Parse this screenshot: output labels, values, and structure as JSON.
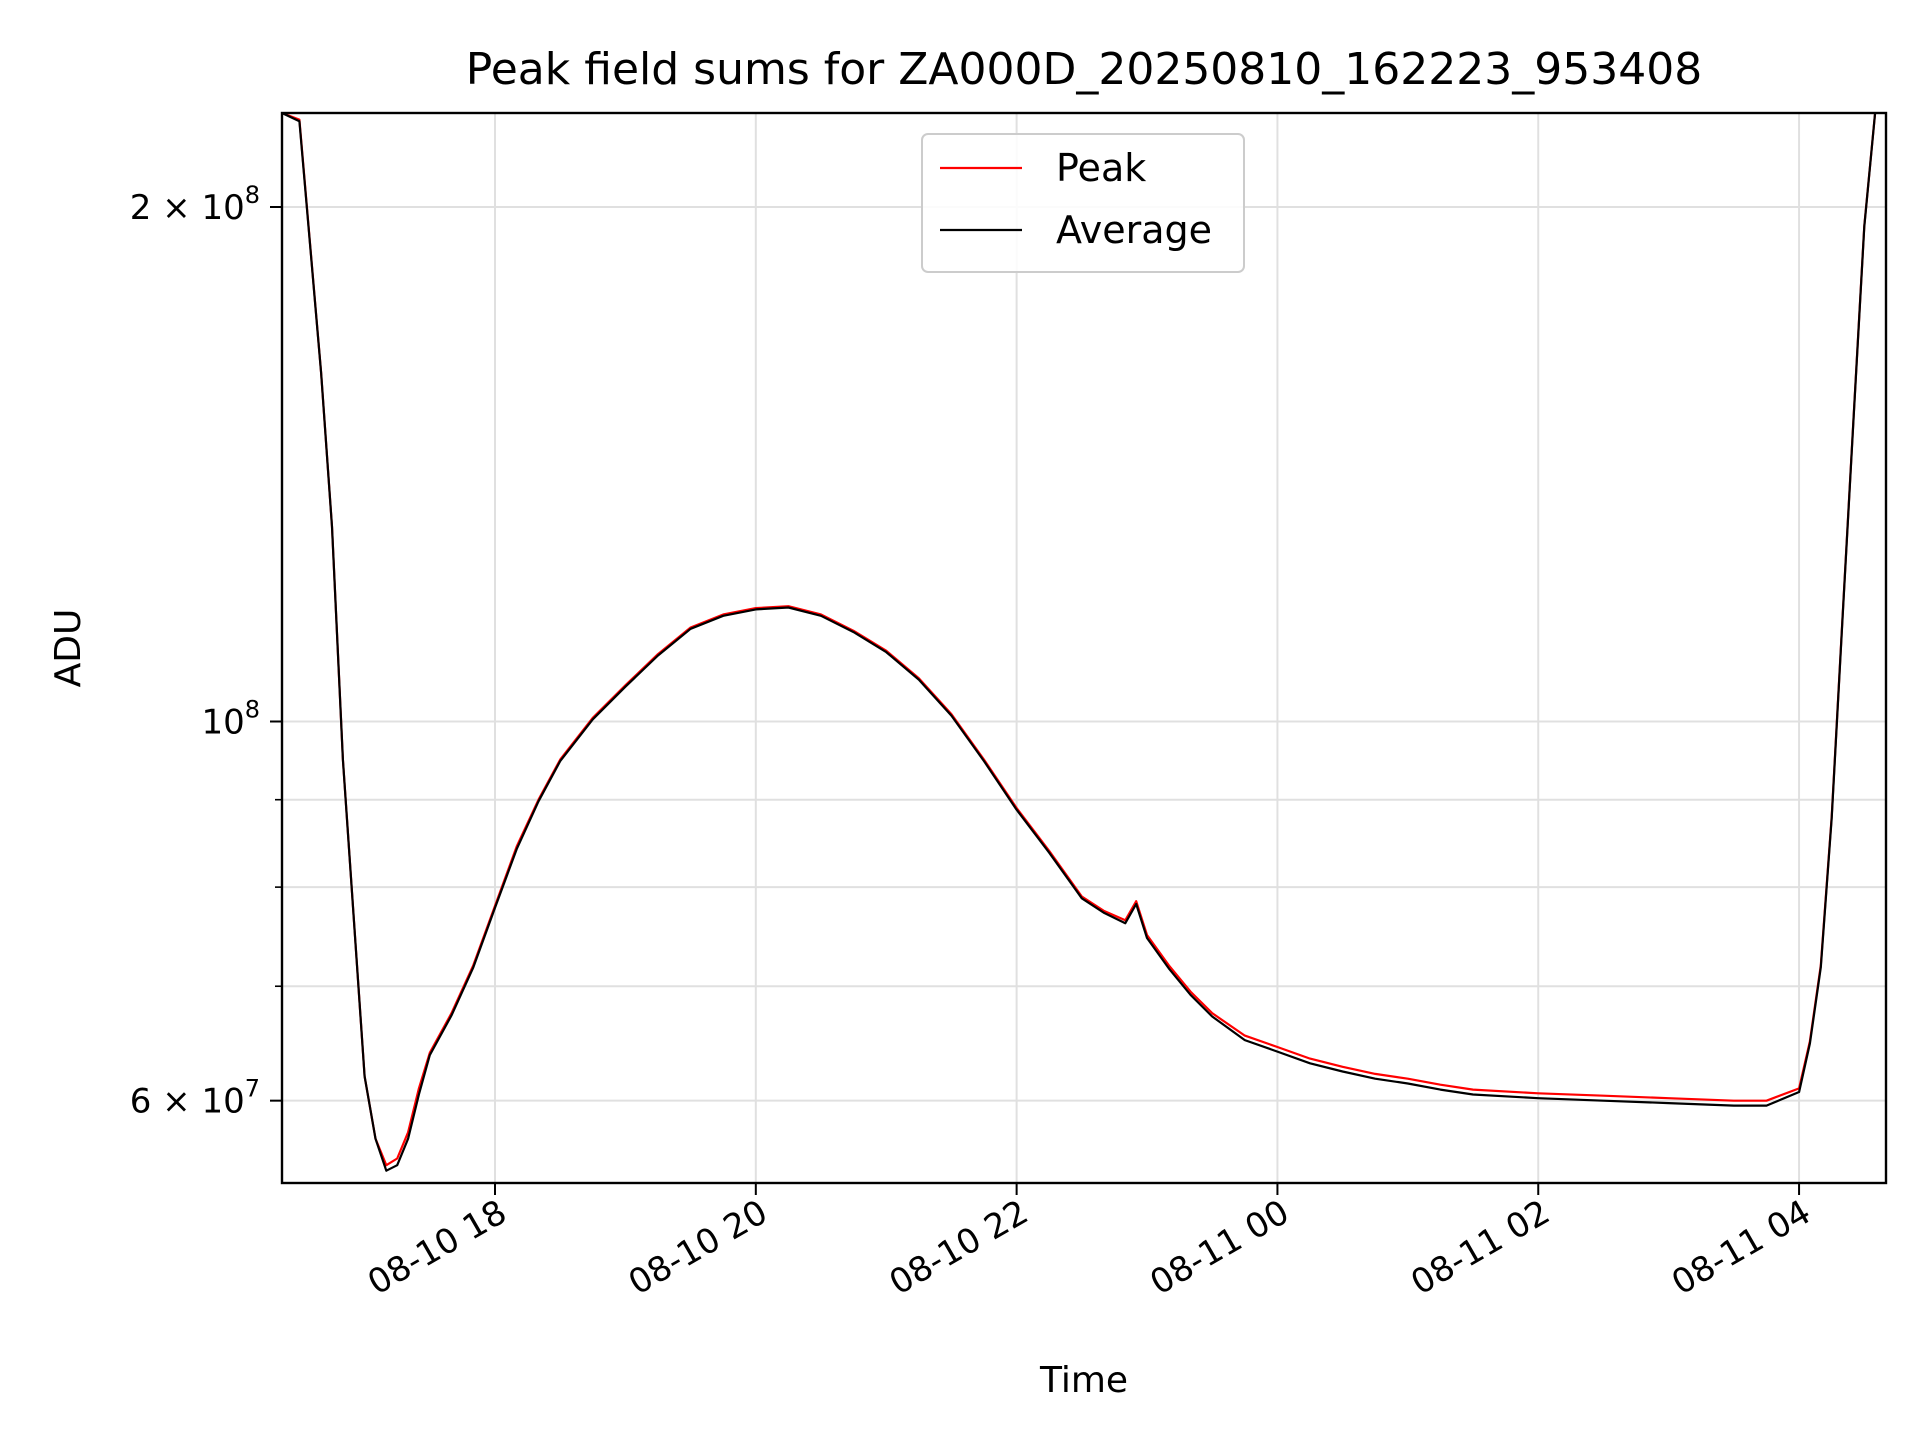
{
  "chart_data": {
    "type": "line",
    "title": "Peak field sums for ZA000D_20250810_162223_953408",
    "xlabel": "Time",
    "ylabel": "ADU",
    "yscale": "log",
    "grid": true,
    "legend_position": "upper center",
    "xlim": [
      "2025-08-10 16:22",
      "2025-08-11 04:40"
    ],
    "ylim": [
      53700000,
      227000000
    ],
    "x_ticks": [
      {
        "value": "2025-08-10 18:00",
        "label": "08-10 18"
      },
      {
        "value": "2025-08-10 20:00",
        "label": "08-10 20"
      },
      {
        "value": "2025-08-10 22:00",
        "label": "08-10 22"
      },
      {
        "value": "2025-08-11 00:00",
        "label": "08-11 00"
      },
      {
        "value": "2025-08-11 02:00",
        "label": "08-11 02"
      },
      {
        "value": "2025-08-11 04:00",
        "label": "08-11 04"
      }
    ],
    "y_major_ticks": [
      {
        "value": 60000000,
        "mantissa": "6",
        "exp": "7"
      },
      {
        "value": 100000000,
        "mantissa": "",
        "exp": "8"
      },
      {
        "value": 200000000,
        "mantissa": "2",
        "exp": "8"
      }
    ],
    "y_minor_ticks": [
      70000000,
      80000000,
      90000000
    ],
    "x": [
      "2025-08-10 16:22",
      "2025-08-10 16:30",
      "2025-08-10 16:40",
      "2025-08-10 16:45",
      "2025-08-10 16:50",
      "2025-08-10 17:00",
      "2025-08-10 17:05",
      "2025-08-10 17:10",
      "2025-08-10 17:15",
      "2025-08-10 17:20",
      "2025-08-10 17:25",
      "2025-08-10 17:30",
      "2025-08-10 17:40",
      "2025-08-10 17:50",
      "2025-08-10 18:00",
      "2025-08-10 18:10",
      "2025-08-10 18:20",
      "2025-08-10 18:30",
      "2025-08-10 18:45",
      "2025-08-10 19:00",
      "2025-08-10 19:15",
      "2025-08-10 19:30",
      "2025-08-10 19:45",
      "2025-08-10 20:00",
      "2025-08-10 20:15",
      "2025-08-10 20:30",
      "2025-08-10 20:45",
      "2025-08-10 21:00",
      "2025-08-10 21:15",
      "2025-08-10 21:30",
      "2025-08-10 21:45",
      "2025-08-10 22:00",
      "2025-08-10 22:15",
      "2025-08-10 22:30",
      "2025-08-10 22:40",
      "2025-08-10 22:50",
      "2025-08-10 22:55",
      "2025-08-10 23:00",
      "2025-08-10 23:10",
      "2025-08-10 23:20",
      "2025-08-10 23:30",
      "2025-08-10 23:45",
      "2025-08-11 00:00",
      "2025-08-11 00:15",
      "2025-08-11 00:30",
      "2025-08-11 00:45",
      "2025-08-11 01:00",
      "2025-08-11 01:15",
      "2025-08-11 01:30",
      "2025-08-11 02:00",
      "2025-08-11 02:30",
      "2025-08-11 03:00",
      "2025-08-11 03:30",
      "2025-08-11 03:45",
      "2025-08-11 04:00",
      "2025-08-11 04:05",
      "2025-08-11 04:10",
      "2025-08-11 04:15",
      "2025-08-11 04:20",
      "2025-08-11 04:25",
      "2025-08-11 04:30",
      "2025-08-11 04:35"
    ],
    "series": [
      {
        "name": "Peak",
        "color": "#ff0000",
        "values": [
          227000000,
          225000000,
          160000000,
          130000000,
          95000000,
          62000000,
          57000000,
          55000000,
          55500000,
          57500000,
          61000000,
          64000000,
          67500000,
          72000000,
          78000000,
          84500000,
          90000000,
          95000000,
          100500000,
          105000000,
          109500000,
          113500000,
          115500000,
          116500000,
          116800000,
          115500000,
          113000000,
          110000000,
          106000000,
          101000000,
          95000000,
          89000000,
          84000000,
          79000000,
          77500000,
          76500000,
          78500000,
          75000000,
          72000000,
          69500000,
          67500000,
          65500000,
          64500000,
          63500000,
          62800000,
          62200000,
          61800000,
          61300000,
          60900000,
          60600000,
          60400000,
          60200000,
          60000000,
          60000000,
          61000000,
          65000000,
          72000000,
          88000000,
          115000000,
          150000000,
          195000000,
          227000000
        ]
      },
      {
        "name": "Average",
        "color": "#000000",
        "values": [
          227000000,
          224500000,
          160000000,
          130000000,
          95000000,
          62000000,
          57000000,
          54600000,
          55000000,
          57000000,
          60500000,
          63800000,
          67300000,
          71800000,
          77800000,
          84200000,
          89800000,
          94800000,
          100300000,
          104800000,
          109300000,
          113300000,
          115300000,
          116300000,
          116600000,
          115300000,
          112800000,
          109800000,
          105800000,
          100800000,
          94800000,
          88800000,
          83800000,
          78800000,
          77300000,
          76200000,
          78200000,
          74700000,
          71700000,
          69200000,
          67200000,
          65100000,
          64100000,
          63100000,
          62400000,
          61800000,
          61400000,
          60900000,
          60500000,
          60200000,
          60000000,
          59800000,
          59600000,
          59600000,
          60700000,
          64800000,
          71800000,
          87800000,
          114800000,
          149800000,
          194800000,
          227000000
        ]
      }
    ]
  }
}
